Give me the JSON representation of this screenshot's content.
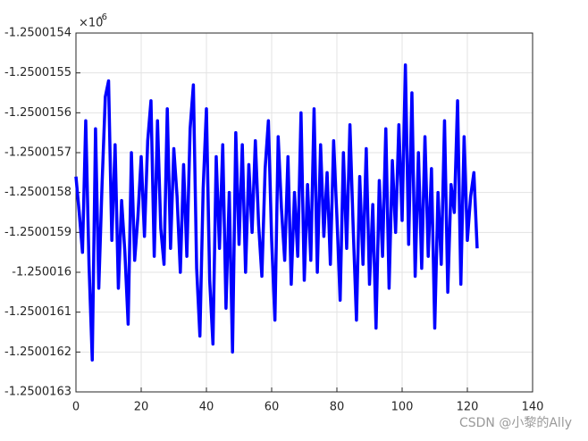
{
  "chart_data": {
    "type": "line",
    "y_exponent_base": "×10",
    "y_exponent_power": "-6",
    "watermark": "CSDN @小黎的Ally",
    "xlim": [
      0,
      140
    ],
    "xticks": [
      0,
      20,
      40,
      60,
      80,
      100,
      120,
      140
    ],
    "ylim": [
      -1.2500163,
      -1.2500154
    ],
    "yticks": [
      -1.2500154,
      -1.2500155,
      -1.2500156,
      -1.2500157,
      -1.2500158,
      -1.2500159,
      -1.250016,
      -1.2500161,
      -1.2500162,
      -1.2500163
    ],
    "grid": true,
    "x": [
      0,
      1,
      2,
      3,
      4,
      5,
      6,
      7,
      8,
      9,
      10,
      11,
      12,
      13,
      14,
      15,
      16,
      17,
      18,
      19,
      20,
      21,
      22,
      23,
      24,
      25,
      26,
      27,
      28,
      29,
      30,
      31,
      32,
      33,
      34,
      35,
      36,
      37,
      38,
      39,
      40,
      41,
      42,
      43,
      44,
      45,
      46,
      47,
      48,
      49,
      50,
      51,
      52,
      53,
      54,
      55,
      56,
      57,
      58,
      59,
      60,
      61,
      62,
      63,
      64,
      65,
      66,
      67,
      68,
      69,
      70,
      71,
      72,
      73,
      74,
      75,
      76,
      77,
      78,
      79,
      80,
      81,
      82,
      83,
      84,
      85,
      86,
      87,
      88,
      89,
      90,
      91,
      92,
      93,
      94,
      95,
      96,
      97,
      98,
      99,
      100,
      101,
      102,
      103,
      104,
      105,
      106,
      107,
      108,
      109,
      110,
      111,
      112,
      113,
      114,
      115,
      116,
      117,
      118,
      119,
      120,
      121,
      122,
      123
    ],
    "series": [
      {
        "color": "#0000ff",
        "values": [
          -1.25001576,
          -1.25001585,
          -1.25001595,
          -1.25001562,
          -1.25001598,
          -1.25001622,
          -1.25001564,
          -1.25001604,
          -1.25001578,
          -1.25001556,
          -1.25001552,
          -1.25001592,
          -1.25001568,
          -1.25001604,
          -1.25001582,
          -1.25001595,
          -1.25001613,
          -1.2500157,
          -1.25001597,
          -1.25001586,
          -1.25001571,
          -1.25001591,
          -1.25001567,
          -1.25001557,
          -1.25001596,
          -1.25001562,
          -1.25001589,
          -1.25001598,
          -1.25001559,
          -1.25001594,
          -1.25001569,
          -1.25001581,
          -1.250016,
          -1.25001573,
          -1.25001596,
          -1.25001564,
          -1.25001553,
          -1.25001599,
          -1.25001616,
          -1.25001579,
          -1.25001559,
          -1.25001602,
          -1.25001618,
          -1.25001571,
          -1.25001594,
          -1.25001568,
          -1.25001609,
          -1.2500158,
          -1.2500162,
          -1.25001565,
          -1.25001593,
          -1.25001568,
          -1.250016,
          -1.25001573,
          -1.2500159,
          -1.25001567,
          -1.25001588,
          -1.25001601,
          -1.25001574,
          -1.25001562,
          -1.25001592,
          -1.25001612,
          -1.25001566,
          -1.25001584,
          -1.25001597,
          -1.25001571,
          -1.25001603,
          -1.2500158,
          -1.25001596,
          -1.2500156,
          -1.25001602,
          -1.25001578,
          -1.25001597,
          -1.25001559,
          -1.250016,
          -1.25001568,
          -1.25001591,
          -1.25001575,
          -1.25001598,
          -1.25001567,
          -1.25001586,
          -1.25001607,
          -1.2500157,
          -1.25001594,
          -1.25001563,
          -1.25001589,
          -1.25001612,
          -1.25001576,
          -1.25001598,
          -1.25001569,
          -1.25001603,
          -1.25001583,
          -1.25001614,
          -1.25001577,
          -1.25001596,
          -1.25001564,
          -1.25001604,
          -1.25001572,
          -1.2500159,
          -1.25001563,
          -1.25001587,
          -1.25001548,
          -1.25001593,
          -1.25001555,
          -1.25001601,
          -1.2500157,
          -1.25001599,
          -1.25001566,
          -1.25001596,
          -1.25001574,
          -1.25001614,
          -1.2500158,
          -1.25001598,
          -1.25001562,
          -1.25001605,
          -1.25001578,
          -1.25001585,
          -1.25001557,
          -1.25001603,
          -1.25001566,
          -1.25001592,
          -1.25001581,
          -1.25001575,
          -1.25001594
        ]
      }
    ]
  }
}
